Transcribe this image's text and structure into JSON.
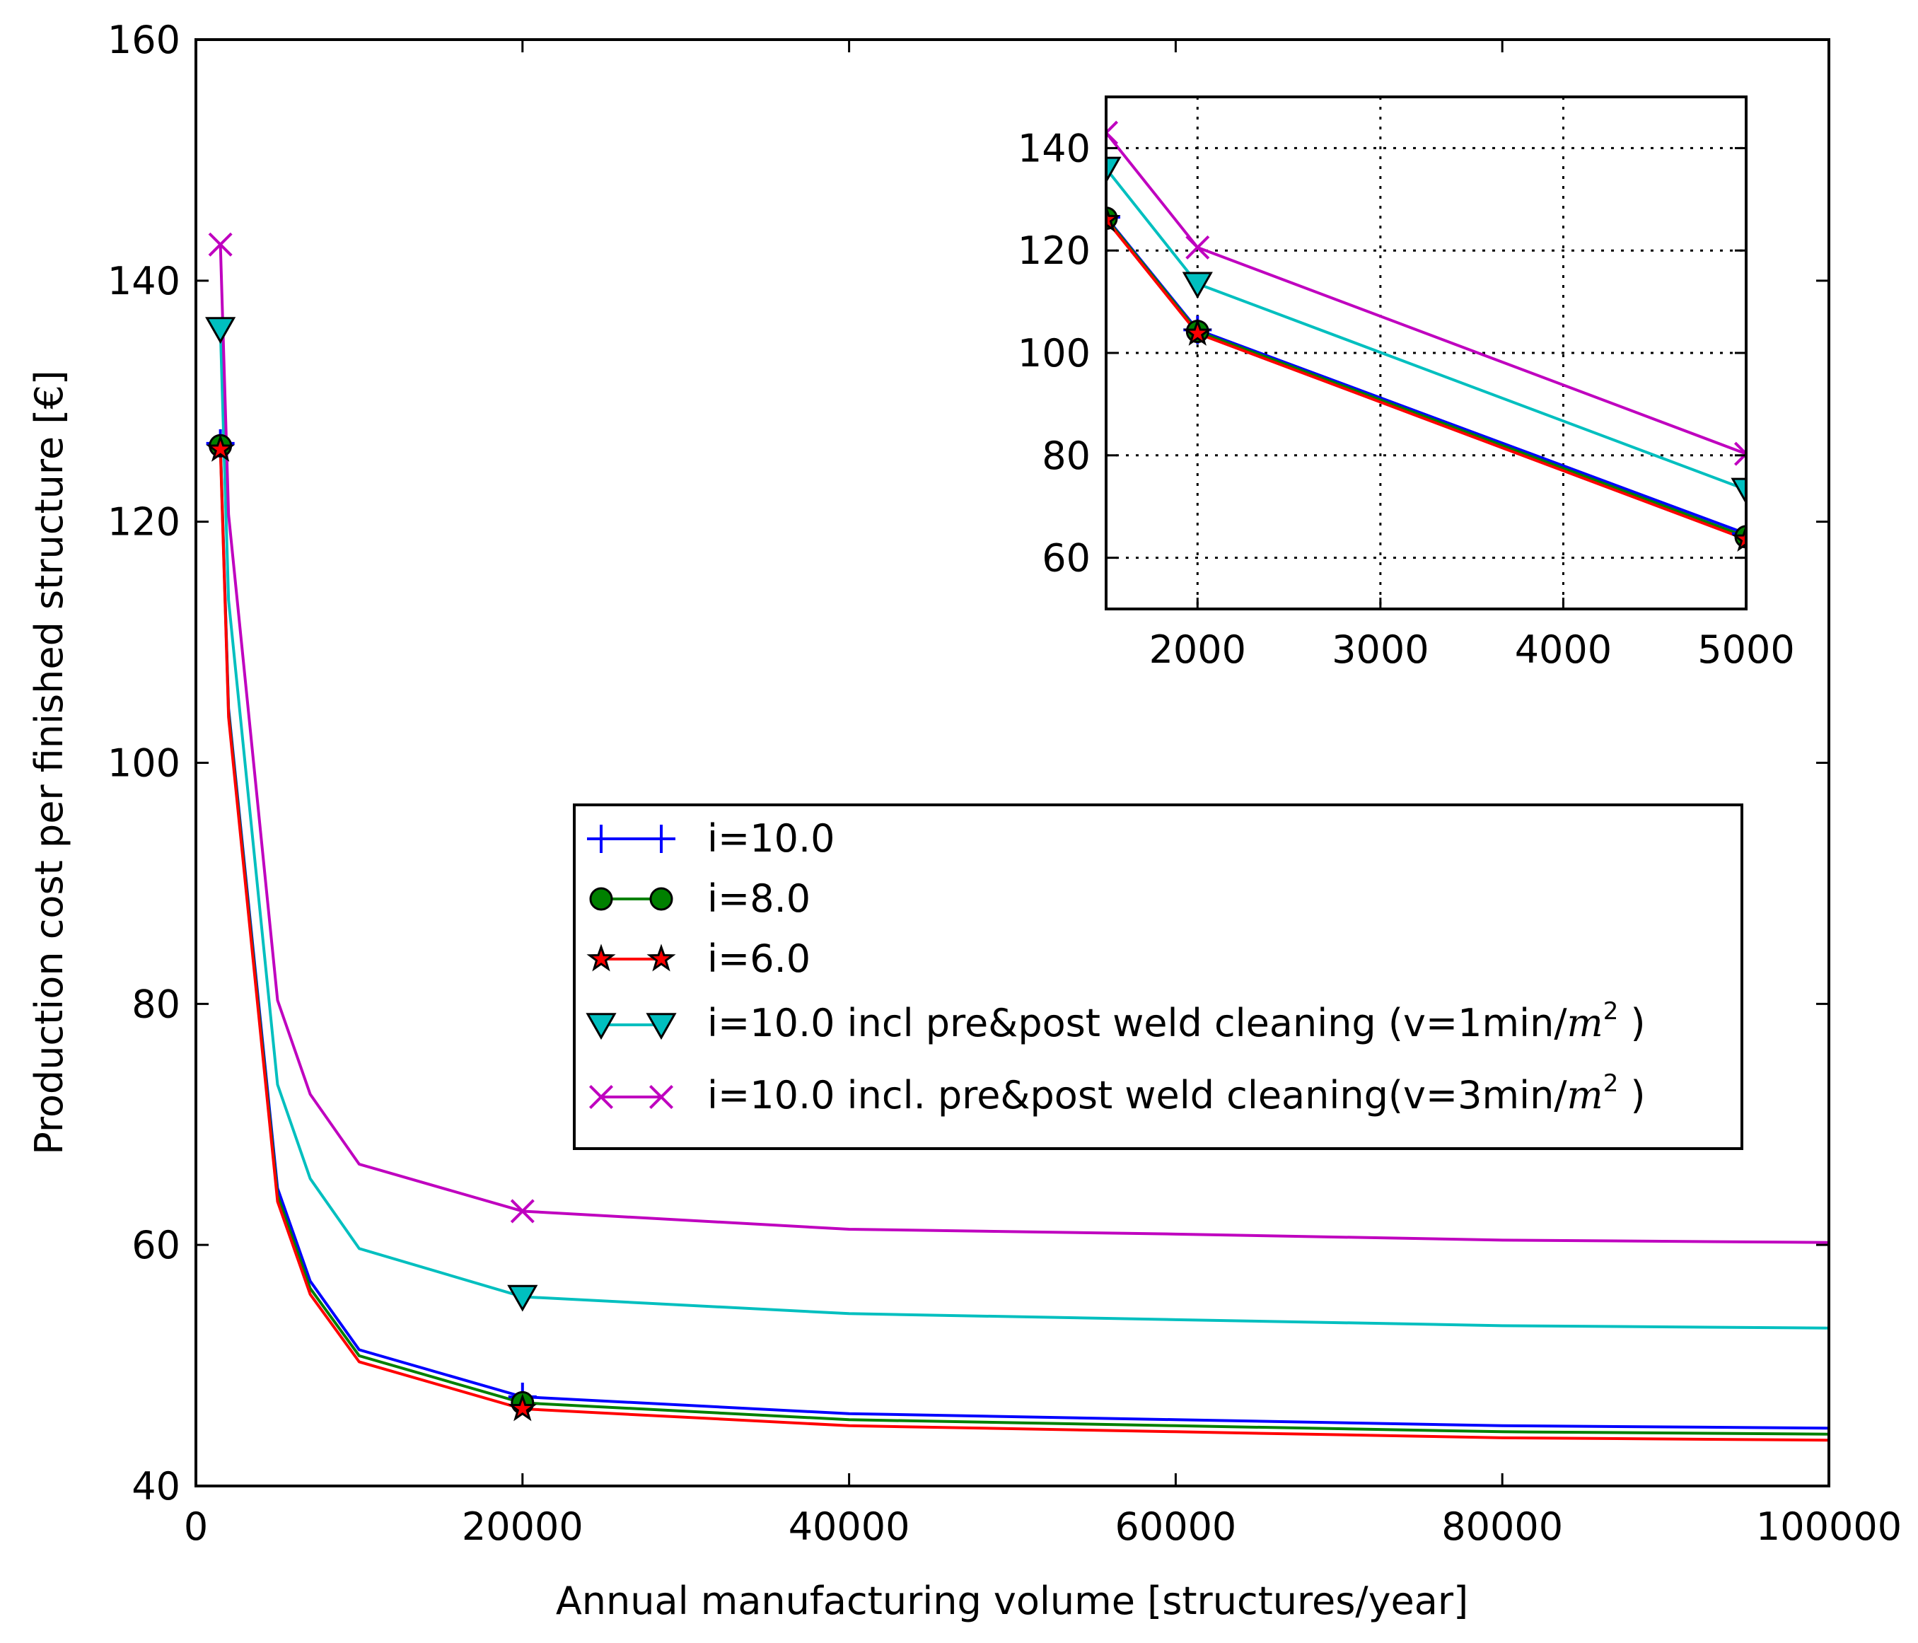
{
  "chart_data": {
    "type": "line",
    "xlabel": "Annual manufacturing volume [structures/year]",
    "ylabel": "Production cost per finished structure [€]",
    "xlim": [
      0,
      100000
    ],
    "ylim": [
      40,
      160
    ],
    "xticks": [
      0,
      20000,
      40000,
      60000,
      80000,
      100000
    ],
    "yticks": [
      40,
      60,
      80,
      100,
      120,
      140,
      160
    ],
    "grid": false,
    "legend_position": "center-right",
    "x": [
      1500,
      2000,
      5000,
      7000,
      10000,
      20000,
      40000,
      60000,
      80000,
      100000
    ],
    "series": [
      {
        "name": "i=10.0",
        "color": "#0000ff",
        "marker": "plus",
        "values": [
          126.5,
          104.5,
          64.7,
          57.0,
          51.3,
          47.4,
          46.0,
          45.5,
          45.0,
          44.8
        ],
        "marker_x": [
          1500,
          20000
        ]
      },
      {
        "name": "i=8.0",
        "color": "#008000",
        "marker": "circle",
        "values": [
          126.3,
          104.2,
          64.1,
          56.4,
          50.8,
          46.9,
          45.5,
          45.0,
          44.5,
          44.3
        ],
        "marker_x": [
          1500,
          20000
        ]
      },
      {
        "name": "i=6.0",
        "color": "#ff0000",
        "marker": "star",
        "values": [
          126.0,
          103.8,
          63.6,
          55.9,
          50.3,
          46.4,
          45.0,
          44.5,
          44.0,
          43.8
        ],
        "marker_x": [
          1500,
          20000
        ]
      },
      {
        "name": "i=10.0 incl pre&post weld cleaning (v=1min/",
        "superscript_unit": "m",
        "superscript_power": "2",
        "suffix": " )",
        "color": "#00bfbf",
        "marker": "triangle-down",
        "values": [
          136.0,
          113.5,
          73.3,
          65.5,
          59.7,
          55.7,
          54.3,
          53.8,
          53.3,
          53.1
        ],
        "marker_x": [
          1500,
          20000
        ]
      },
      {
        "name": "i=10.0 incl. pre&post weld cleaning(v=3min/",
        "superscript_unit": "m",
        "superscript_power": "2",
        "suffix": " )",
        "color": "#bf00bf",
        "marker": "x",
        "values": [
          143.0,
          120.6,
          80.3,
          72.5,
          66.7,
          62.8,
          61.3,
          60.9,
          60.4,
          60.2
        ],
        "marker_x": [
          1500,
          20000
        ]
      }
    ],
    "inset": {
      "xlim": [
        1500,
        5000
      ],
      "ylim": [
        50,
        150
      ],
      "xticks": [
        2000,
        3000,
        4000,
        5000
      ],
      "yticks": [
        60,
        80,
        100,
        120,
        140
      ],
      "grid": true,
      "marker_x": [
        1500,
        2000,
        5000
      ]
    }
  }
}
